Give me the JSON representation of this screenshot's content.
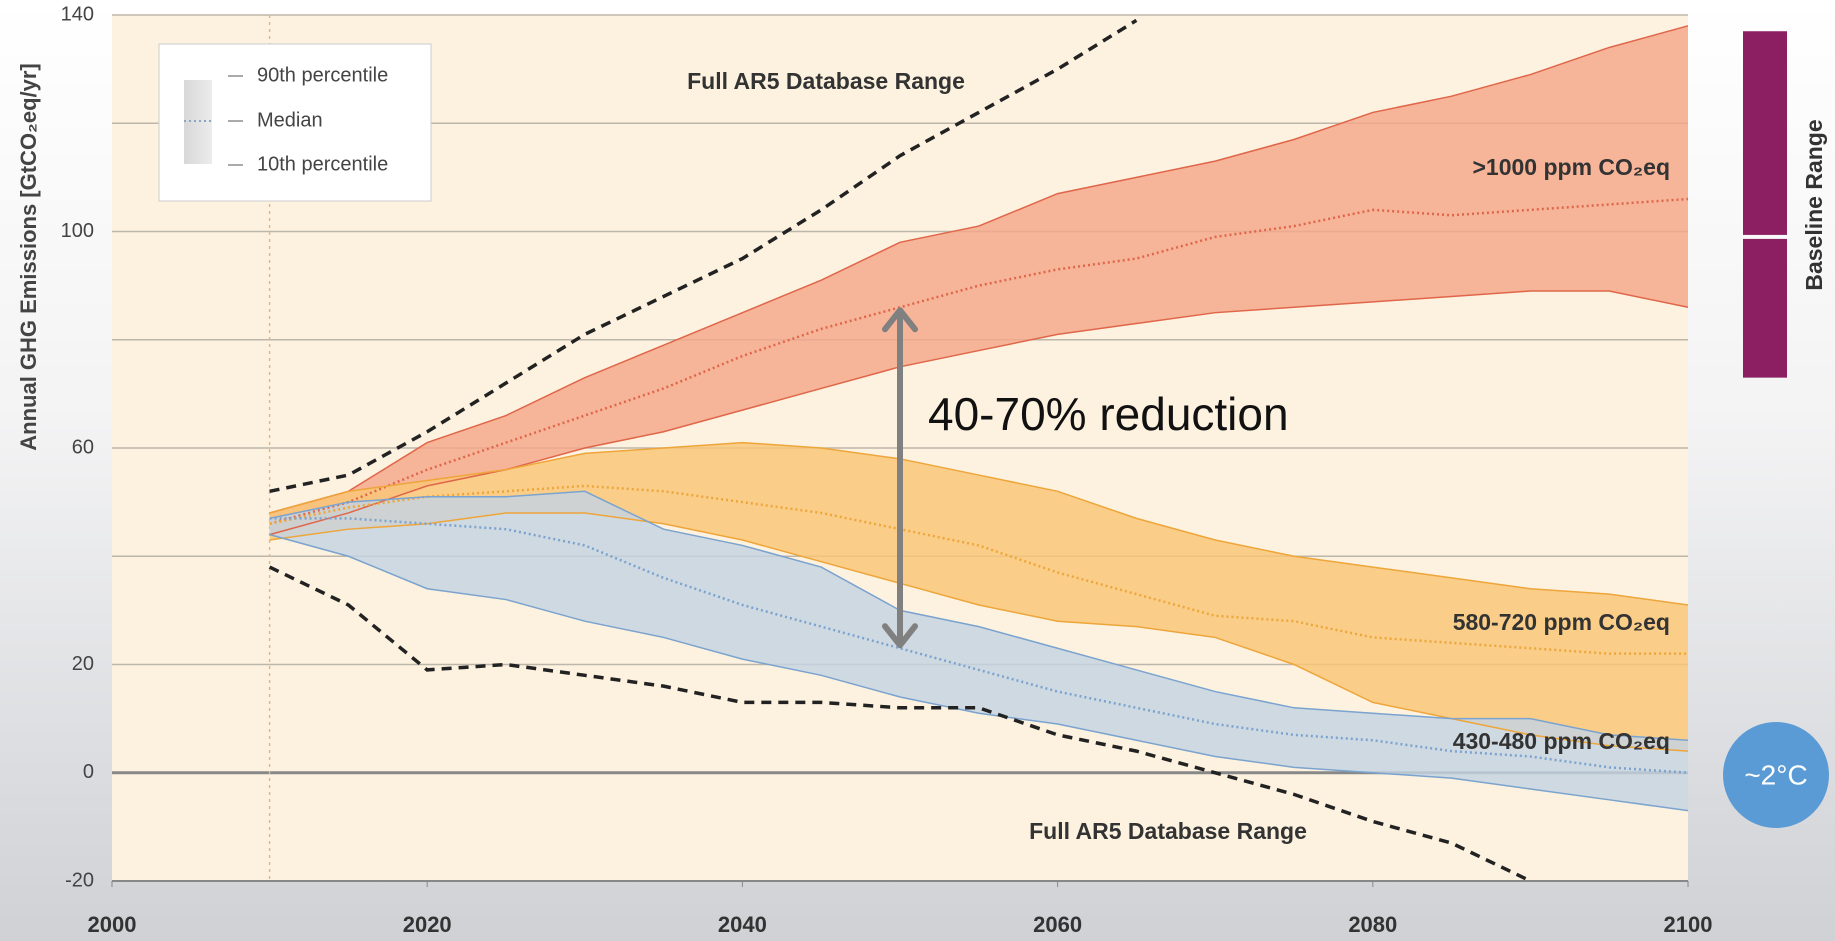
{
  "chart_data": {
    "type": "band",
    "ylabel": "Annual GHG Emissions [GtCO₂eq/yr]",
    "x": [
      2010,
      2015,
      2020,
      2025,
      2030,
      2035,
      2040,
      2045,
      2050,
      2055,
      2060,
      2065,
      2070,
      2075,
      2080,
      2085,
      2090,
      2095,
      2100
    ],
    "xlim": [
      2000,
      2100
    ],
    "xticks": [
      2000,
      2020,
      2040,
      2060,
      2080,
      2100
    ],
    "ylim": [
      -20,
      140
    ],
    "yticks": [
      -20,
      0,
      20,
      60,
      100,
      140
    ],
    "ygrid": [
      -20,
      0,
      20,
      40,
      60,
      80,
      100,
      120,
      140
    ],
    "marker_x": 2010,
    "series": [
      {
        "name": ">1000 ppm CO₂eq",
        "color": "#e0664a",
        "fill": "#f4a68a",
        "values": [
          46,
          50,
          56,
          61,
          66,
          71,
          77,
          82,
          86,
          90,
          93,
          95,
          99,
          101,
          104,
          103,
          104,
          105,
          106
        ],
        "lower": [
          44,
          48,
          53,
          56,
          60,
          63,
          67,
          71,
          75,
          78,
          81,
          83,
          85,
          86,
          87,
          88,
          89,
          89,
          86
        ],
        "upper": [
          48,
          52,
          61,
          66,
          73,
          79,
          85,
          91,
          98,
          101,
          107,
          110,
          113,
          117,
          122,
          125,
          129,
          134,
          138
        ]
      },
      {
        "name": "580-720 ppm CO₂eq",
        "color": "#eea53a",
        "fill": "#f9c676",
        "values": [
          46,
          49,
          51,
          52,
          53,
          52,
          50,
          48,
          45,
          42,
          37,
          33,
          29,
          28,
          25,
          24,
          23,
          22,
          22
        ],
        "lower": [
          43,
          45,
          46,
          48,
          48,
          46,
          43,
          39,
          35,
          31,
          28,
          27,
          25,
          20,
          13,
          10,
          7,
          5,
          4
        ],
        "upper": [
          48,
          52,
          54,
          56,
          59,
          60,
          61,
          60,
          58,
          55,
          52,
          47,
          43,
          40,
          38,
          36,
          34,
          33,
          31
        ]
      },
      {
        "name": "430-480 ppm CO₂eq",
        "color": "#7aa3cf",
        "fill": "#c4d3e2",
        "values": [
          47,
          47,
          46,
          45,
          42,
          36,
          31,
          27,
          23,
          19,
          15,
          12,
          9,
          7,
          6,
          4,
          3,
          1,
          0
        ],
        "lower": [
          44,
          40,
          34,
          32,
          28,
          25,
          21,
          18,
          14,
          11,
          9,
          6,
          3,
          1,
          0,
          -1,
          -3,
          -5,
          -7
        ],
        "upper": [
          47,
          50,
          51,
          51,
          52,
          45,
          42,
          38,
          30,
          27,
          23,
          19,
          15,
          12,
          11,
          10,
          10,
          7,
          6
        ]
      }
    ],
    "range": {
      "labels": [
        "Full AR5 Database Range",
        "Full AR5 Database Range"
      ],
      "upper": [
        52,
        55,
        63,
        72,
        81,
        88,
        95,
        104,
        114,
        122,
        130,
        139,
        null,
        null,
        null,
        null,
        null,
        null,
        null
      ],
      "lower": [
        38,
        31,
        19,
        20,
        18,
        16,
        13,
        13,
        12,
        12,
        7,
        4,
        0,
        -4,
        -9,
        -13,
        -20,
        null,
        null
      ]
    },
    "legend": [
      "90th percentile",
      "Median",
      "10th percentile"
    ],
    "annotation": {
      "text": "40-70% reduction",
      "x": 2050,
      "from": 86,
      "to": 23
    },
    "baseline": {
      "label": "Baseline Range",
      "values": [
        73,
        99,
        137
      ],
      "color": "#8b1f62"
    },
    "badge": "~2°C"
  }
}
